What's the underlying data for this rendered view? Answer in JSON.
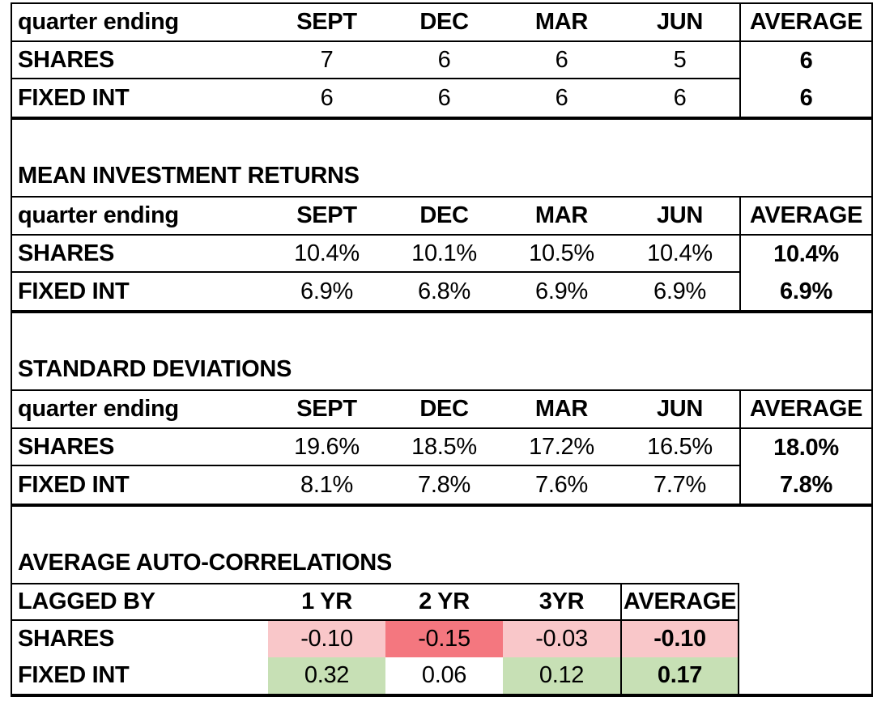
{
  "colors": {
    "border": "#000000",
    "background": "#FFFFFF",
    "negative_strong_fill": "#F4777F",
    "negative_light_fill": "#F9C7C9",
    "positive_fill": "#C7E0B5",
    "neutral_fill": "#FFFFFF"
  },
  "tables": [
    {
      "header_label": "quarter ending",
      "columns": [
        "SEPT",
        "DEC",
        "MAR",
        "JUN"
      ],
      "average_label": "AVERAGE",
      "rows": [
        {
          "label": "SHARES",
          "values": [
            "7",
            "6",
            "6",
            "5"
          ],
          "average": "6"
        },
        {
          "label": "FIXED INT",
          "values": [
            "6",
            "6",
            "6",
            "6"
          ],
          "average": "6"
        }
      ]
    },
    {
      "title": "MEAN INVESTMENT RETURNS",
      "header_label": "quarter ending",
      "columns": [
        "SEPT",
        "DEC",
        "MAR",
        "JUN"
      ],
      "average_label": "AVERAGE",
      "rows": [
        {
          "label": "SHARES",
          "values": [
            "10.4%",
            "10.1%",
            "10.5%",
            "10.4%"
          ],
          "average": "10.4%"
        },
        {
          "label": "FIXED INT",
          "values": [
            "6.9%",
            "6.8%",
            "6.9%",
            "6.9%"
          ],
          "average": "6.9%"
        }
      ]
    },
    {
      "title": "STANDARD DEVIATIONS",
      "header_label": "quarter ending",
      "columns": [
        "SEPT",
        "DEC",
        "MAR",
        "JUN"
      ],
      "average_label": "AVERAGE",
      "rows": [
        {
          "label": "SHARES",
          "values": [
            "19.6%",
            "18.5%",
            "17.2%",
            "16.5%"
          ],
          "average": "18.0%"
        },
        {
          "label": "FIXED INT",
          "values": [
            "8.1%",
            "7.8%",
            "7.6%",
            "7.7%"
          ],
          "average": "7.8%"
        }
      ]
    },
    {
      "title": "AVERAGE AUTO-CORRELATIONS",
      "header_label": "LAGGED BY",
      "columns": [
        "1 YR",
        "2 YR",
        "3YR"
      ],
      "average_label": "AVERAGE",
      "rows": [
        {
          "label": "SHARES",
          "values": [
            "-0.10",
            "-0.15",
            "-0.03"
          ],
          "average": "-0.10",
          "value_fills": [
            "#F9C7C9",
            "#F4777F",
            "#F9C7C9"
          ],
          "average_fill": "#F9C7C9"
        },
        {
          "label": "FIXED INT",
          "values": [
            "0.32",
            "0.06",
            "0.12"
          ],
          "average": "0.17",
          "value_fills": [
            "#C7E0B5",
            "#FFFFFF",
            "#C7E0B5"
          ],
          "average_fill": "#C7E0B5"
        }
      ]
    }
  ]
}
